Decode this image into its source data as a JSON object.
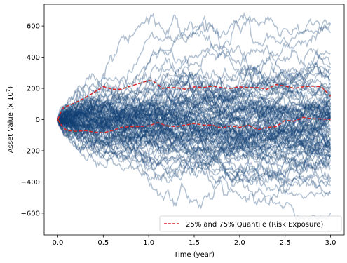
{
  "chart_data": {
    "type": "line",
    "title": "",
    "xlabel": "Time (year)",
    "ylabel_main": "Asset Value (x 10",
    "ylabel_exp": "7",
    "ylabel_close": ")",
    "xlim": [
      -0.15,
      3.15
    ],
    "ylim": [
      -740,
      740
    ],
    "x_ticks": [
      0.0,
      0.5,
      1.0,
      1.5,
      2.0,
      2.5,
      3.0
    ],
    "x_tick_labels": [
      "0.0",
      "0.5",
      "1.0",
      "1.5",
      "2.0",
      "2.5",
      "3.0"
    ],
    "y_ticks": [
      -600,
      -400,
      -200,
      0,
      200,
      400,
      600
    ],
    "y_tick_labels": [
      "−600",
      "−400",
      "−200",
      "0",
      "200",
      "400",
      "600"
    ],
    "grid": false,
    "legend_placement": "lower-right",
    "legend": [
      "25% and 75% Quantile (Risk Exposure)"
    ],
    "simulated_paths": {
      "count": 100,
      "start_value": 0,
      "end_time": 3.0,
      "observed_max": 690,
      "observed_min": -640,
      "color": "#0e3f73"
    },
    "series": [
      {
        "name": "25% and 75% Quantile (Risk Exposure)",
        "color": "#d62728",
        "upper": {
          "x": [
            0.0,
            0.05,
            0.1,
            0.2,
            0.3,
            0.4,
            0.5,
            0.6,
            0.7,
            0.8,
            0.9,
            1.0,
            1.05,
            1.1,
            1.15,
            1.2,
            1.3,
            1.4,
            1.5,
            1.6,
            1.7,
            1.8,
            1.9,
            2.0,
            2.1,
            2.2,
            2.3,
            2.4,
            2.5,
            2.6,
            2.7,
            2.8,
            2.9,
            3.0
          ],
          "y": [
            0,
            70,
            85,
            110,
            140,
            175,
            212,
            195,
            195,
            215,
            232,
            250,
            245,
            225,
            200,
            205,
            205,
            195,
            210,
            205,
            215,
            205,
            200,
            210,
            205,
            205,
            195,
            225,
            215,
            200,
            210,
            215,
            210,
            150
          ]
        },
        "lower": {
          "x": [
            0.0,
            0.05,
            0.1,
            0.2,
            0.3,
            0.4,
            0.5,
            0.6,
            0.7,
            0.8,
            0.9,
            1.0,
            1.1,
            1.2,
            1.3,
            1.4,
            1.5,
            1.6,
            1.7,
            1.8,
            1.9,
            2.0,
            2.1,
            2.2,
            2.3,
            2.4,
            2.5,
            2.6,
            2.7,
            2.8,
            2.9,
            3.0
          ],
          "y": [
            0,
            -45,
            -70,
            -75,
            -70,
            -80,
            -85,
            -70,
            -50,
            -45,
            -45,
            -40,
            -20,
            -40,
            -45,
            -35,
            -25,
            -35,
            -35,
            -55,
            -40,
            -50,
            -35,
            -65,
            -50,
            -45,
            -5,
            -10,
            15,
            5,
            5,
            0
          ]
        }
      }
    ]
  }
}
